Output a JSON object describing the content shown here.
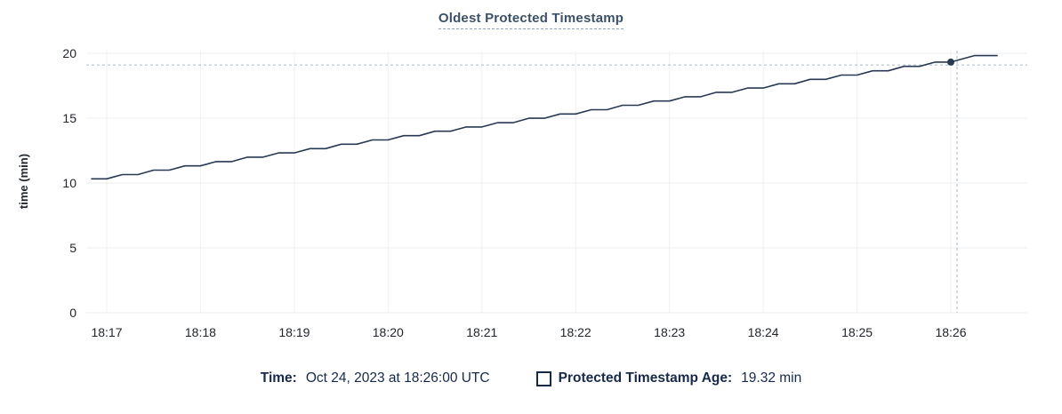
{
  "title": "Oldest Protected Timestamp",
  "tooltip": {
    "time_label": "Time:",
    "time_value": "Oct 24, 2023 at 18:26:00 UTC",
    "series_label": "Protected Timestamp Age:",
    "series_value": "19.32 min"
  },
  "colors": {
    "title": "#3c5168",
    "title_underline": "#93a5ba",
    "line": "#293953",
    "grid": "#e9ecef",
    "grid_vertical": "#eef0f2",
    "axis_text": "#20262c",
    "crosshair": "#a9bac6",
    "legend_text": "#17294a"
  },
  "chart_data": {
    "type": "line",
    "title": "Oldest Protected Timestamp",
    "xlabel": "",
    "ylabel": "time (min)",
    "ylim": [
      0,
      20
    ],
    "y_ticks": [
      0,
      5,
      10,
      15,
      20
    ],
    "x_ticks": [
      "18:17",
      "18:18",
      "18:19",
      "18:20",
      "18:21",
      "18:22",
      "18:23",
      "18:24",
      "18:25",
      "18:26"
    ],
    "x_range": [
      "18:16:47",
      "18:26:49"
    ],
    "grid": true,
    "legend_position": "bottom-center",
    "series": [
      {
        "name": "Protected Timestamp Age",
        "unit": "min",
        "points": [
          [
            "18:16:50",
            10.32
          ],
          [
            "18:17:00",
            10.32
          ],
          [
            "18:17:10",
            10.65
          ],
          [
            "18:17:20",
            10.65
          ],
          [
            "18:17:30",
            10.99
          ],
          [
            "18:17:40",
            10.99
          ],
          [
            "18:17:50",
            11.32
          ],
          [
            "18:18:00",
            11.32
          ],
          [
            "18:18:10",
            11.65
          ],
          [
            "18:18:20",
            11.65
          ],
          [
            "18:18:30",
            11.99
          ],
          [
            "18:18:40",
            11.99
          ],
          [
            "18:18:50",
            12.32
          ],
          [
            "18:19:00",
            12.32
          ],
          [
            "18:19:10",
            12.65
          ],
          [
            "18:19:20",
            12.65
          ],
          [
            "18:19:30",
            12.99
          ],
          [
            "18:19:40",
            12.99
          ],
          [
            "18:19:50",
            13.32
          ],
          [
            "18:20:00",
            13.32
          ],
          [
            "18:20:10",
            13.65
          ],
          [
            "18:20:20",
            13.65
          ],
          [
            "18:20:30",
            13.99
          ],
          [
            "18:20:40",
            13.99
          ],
          [
            "18:20:50",
            14.32
          ],
          [
            "18:21:00",
            14.32
          ],
          [
            "18:21:10",
            14.65
          ],
          [
            "18:21:20",
            14.65
          ],
          [
            "18:21:30",
            14.99
          ],
          [
            "18:21:40",
            14.99
          ],
          [
            "18:21:50",
            15.32
          ],
          [
            "18:22:00",
            15.32
          ],
          [
            "18:22:10",
            15.65
          ],
          [
            "18:22:20",
            15.65
          ],
          [
            "18:22:30",
            15.99
          ],
          [
            "18:22:40",
            15.99
          ],
          [
            "18:22:50",
            16.32
          ],
          [
            "18:23:00",
            16.32
          ],
          [
            "18:23:10",
            16.65
          ],
          [
            "18:23:20",
            16.65
          ],
          [
            "18:23:30",
            16.99
          ],
          [
            "18:23:40",
            16.99
          ],
          [
            "18:23:50",
            17.32
          ],
          [
            "18:24:00",
            17.32
          ],
          [
            "18:24:10",
            17.65
          ],
          [
            "18:24:20",
            17.65
          ],
          [
            "18:24:30",
            17.99
          ],
          [
            "18:24:40",
            17.99
          ],
          [
            "18:24:50",
            18.32
          ],
          [
            "18:25:00",
            18.32
          ],
          [
            "18:25:10",
            18.65
          ],
          [
            "18:25:20",
            18.65
          ],
          [
            "18:25:30",
            18.99
          ],
          [
            "18:25:40",
            18.99
          ],
          [
            "18:25:50",
            19.32
          ],
          [
            "18:26:00",
            19.32
          ],
          [
            "18:26:15",
            19.82
          ],
          [
            "18:26:30",
            19.82
          ]
        ]
      }
    ],
    "hover": {
      "point_time": "18:26:00",
      "point_value": 19.32,
      "crosshair_time": "18:26:04",
      "crosshair_value": 19.1
    }
  }
}
